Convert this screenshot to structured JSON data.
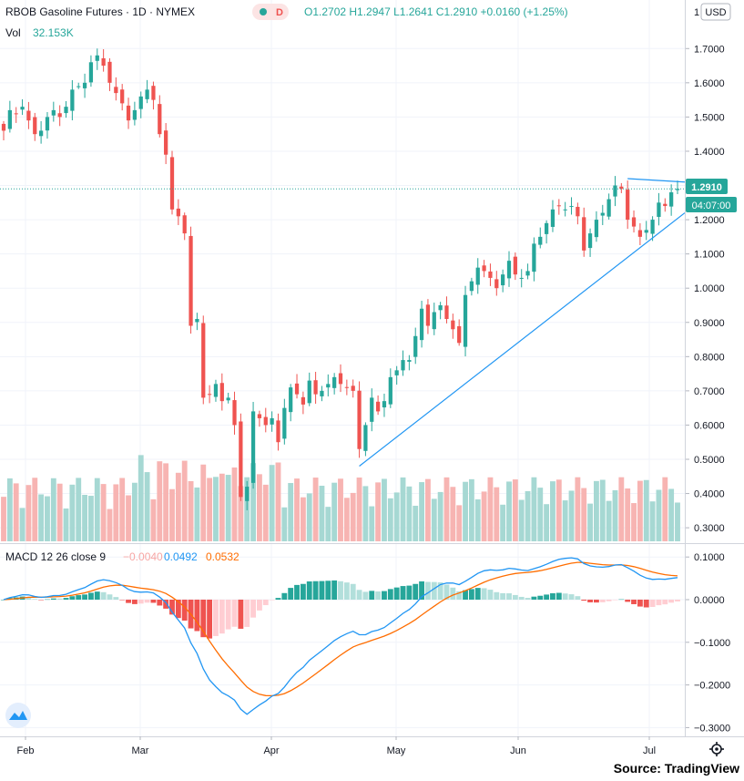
{
  "header": {
    "symbol_title": "RBOB Gasoline Futures · 1D · NYMEX",
    "market_status": "D",
    "ohlc_text": "O1.2702  H1.2947  L1.2641  C1.2910  +0.0160 (+1.25%)",
    "vol_label": "Vol",
    "vol_value": "32.153K",
    "currency": "USD"
  },
  "price_scale": {
    "top_tick": "1",
    "last_price": "1.2910",
    "countdown": "04:07:00"
  },
  "macd_legend": {
    "label": "MACD 12 26 close 9",
    "hist": "−0.0040",
    "macd": "0.0492",
    "signal": "0.0532"
  },
  "source": "Source: TradingView",
  "colors": {
    "up": "#26a69a",
    "down": "#ef5350",
    "up_light": "#a6d8d3",
    "down_light": "#f7b4b2",
    "macd": "#2196f3",
    "signal": "#ff6d00",
    "trend": "#2196f3",
    "grid": "#f0f3fa"
  },
  "chart_data": [
    {
      "type": "candlestick",
      "title": "RBOB Gasoline Futures · 1D · NYMEX",
      "x_ticks": [
        "Feb",
        "Mar",
        "Apr",
        "May",
        "Jun",
        "Jul"
      ],
      "y_ticks": [
        "1.7000",
        "1.6000",
        "1.5000",
        "1.4000",
        "1.3000",
        "1.2000",
        "1.1000",
        "1.0000",
        "0.9000",
        "0.8000",
        "0.7000",
        "0.6000",
        "0.5000",
        "0.4000",
        "0.3000"
      ],
      "ylim": [
        0.25,
        1.8
      ],
      "grid": true,
      "close": [
        1.46,
        1.52,
        1.51,
        1.53,
        1.49,
        1.45,
        1.46,
        1.5,
        1.52,
        1.5,
        1.53,
        1.58,
        1.59,
        1.6,
        1.66,
        1.68,
        1.65,
        1.6,
        1.57,
        1.54,
        1.49,
        1.52,
        1.56,
        1.58,
        1.55,
        1.45,
        1.39,
        1.23,
        1.21,
        1.16,
        0.89,
        0.91,
        0.68,
        0.69,
        0.72,
        0.67,
        0.68,
        0.6,
        0.39,
        0.42,
        0.64,
        0.62,
        0.6,
        0.62,
        0.55,
        0.65,
        0.71,
        0.69,
        0.66,
        0.73,
        0.69,
        0.7,
        0.72,
        0.74,
        0.72,
        0.71,
        0.7,
        0.53,
        0.6,
        0.68,
        0.64,
        0.67,
        0.74,
        0.76,
        0.79,
        0.79,
        0.86,
        0.94,
        0.89,
        0.93,
        0.95,
        0.91,
        0.88,
        0.84,
        0.98,
        1.02,
        1.06,
        1.05,
        1.03,
        1.0,
        1.04,
        1.08,
        1.04,
        1.03,
        1.05,
        1.13,
        1.15,
        1.19,
        1.23,
        1.24,
        1.23,
        1.24,
        1.21,
        1.11,
        1.16,
        1.2,
        1.22,
        1.26,
        1.3,
        1.29,
        1.2,
        1.18,
        1.15,
        1.17,
        1.2,
        1.25,
        1.24,
        1.28,
        1.29
      ],
      "volume_label": "Vol",
      "volume_value_last": "32.153K"
    },
    {
      "type": "line",
      "title": "MACD 12 26 close 9",
      "y_ticks": [
        "0.1000",
        "0.0000",
        "−0.1000",
        "−0.2000",
        "−0.3000"
      ],
      "ylim": [
        -0.31,
        0.12
      ],
      "series": [
        {
          "name": "Histogram",
          "last": -0.004
        },
        {
          "name": "MACD",
          "last": 0.0492
        },
        {
          "name": "Signal",
          "last": 0.0532
        }
      ]
    }
  ]
}
